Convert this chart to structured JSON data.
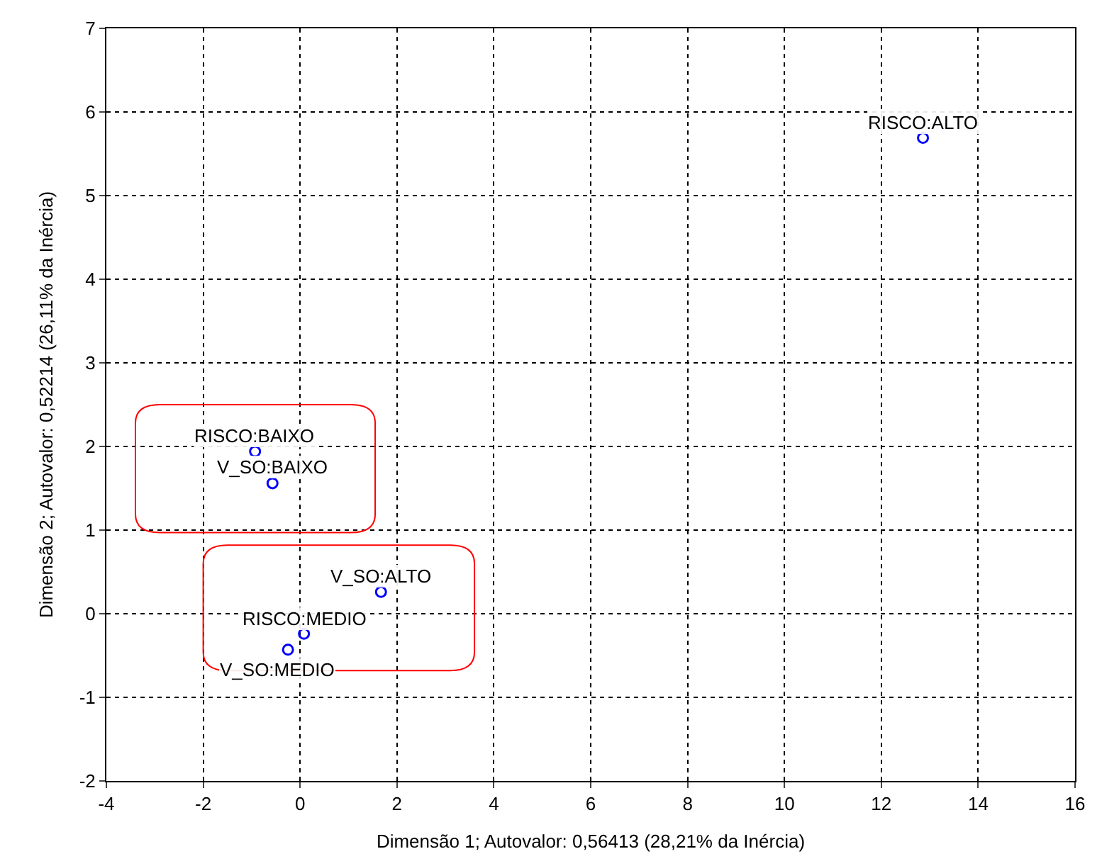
{
  "chart_data": {
    "type": "scatter",
    "xlabel": "Dimensão 1; Autovalor: 0,56413 (28,21% da Inércia)",
    "ylabel": "Dimensão 2; Autovalor: 0,52214 (26,11% da Inércia)",
    "series": [
      {
        "color": "#0000ff",
        "x": [
          12.86,
          -0.93,
          -0.57,
          1.67,
          0.08,
          -0.25
        ],
        "values": [
          5.69,
          1.94,
          1.56,
          0.26,
          -0.24,
          -0.43
        ]
      }
    ],
    "annotations": [
      {
        "text": "RISCO:ALTO",
        "x": 12.86,
        "y": 5.69
      },
      {
        "text": "RISCO:BAIXO",
        "x": -0.93,
        "y": 1.94
      },
      {
        "text": "V_SO:BAIXO",
        "x": -0.57,
        "y": 1.56
      },
      {
        "text": "V_SO:ALTO",
        "x": 1.67,
        "y": 0.26
      },
      {
        "text": "RISCO:MEDIO",
        "x": 0.08,
        "y": -0.24
      },
      {
        "text": "V_SO:MEDIO",
        "x": -0.25,
        "y": -0.43
      }
    ],
    "xlim": [
      -4,
      16
    ],
    "xticks": [
      -4,
      -2,
      0,
      2,
      4,
      6,
      8,
      10,
      12,
      14,
      16
    ],
    "ylim": [
      -2,
      7
    ],
    "yticks": [
      -2,
      -1,
      0,
      1,
      2,
      3,
      4,
      5,
      6,
      7
    ],
    "grid": true,
    "marker": "circle"
  }
}
